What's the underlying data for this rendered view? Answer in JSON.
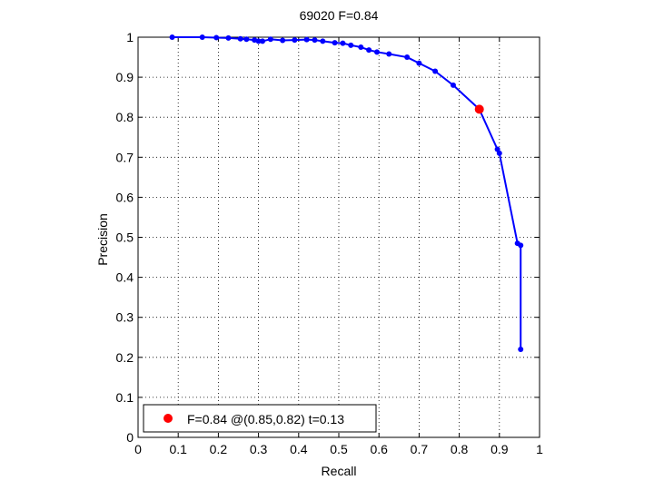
{
  "chart_data": {
    "type": "line",
    "title": "69020 F=0.84",
    "xlabel": "Recall",
    "ylabel": "Precision",
    "xlim": [
      0,
      1
    ],
    "ylim": [
      0,
      1
    ],
    "grid": true,
    "xticks": [
      0,
      0.1,
      0.2,
      0.3,
      0.4,
      0.5,
      0.6,
      0.7,
      0.8,
      0.9,
      1
    ],
    "yticks": [
      0,
      0.1,
      0.2,
      0.3,
      0.4,
      0.5,
      0.6,
      0.7,
      0.8,
      0.9,
      1
    ],
    "xtick_labels": [
      "0",
      "0.1",
      "0.2",
      "0.3",
      "0.4",
      "0.5",
      "0.6",
      "0.7",
      "0.8",
      "0.9",
      "1"
    ],
    "ytick_labels": [
      "0",
      "0.1",
      "0.2",
      "0.3",
      "0.4",
      "0.5",
      "0.6",
      "0.7",
      "0.8",
      "0.9",
      "1"
    ],
    "series": [
      {
        "color": "#0000ff",
        "marker": "dot",
        "x": [
          0.085,
          0.16,
          0.195,
          0.225,
          0.255,
          0.27,
          0.29,
          0.3,
          0.31,
          0.33,
          0.36,
          0.39,
          0.42,
          0.44,
          0.46,
          0.49,
          0.51,
          0.53,
          0.555,
          0.575,
          0.595,
          0.625,
          0.67,
          0.7,
          0.74,
          0.785,
          0.85,
          0.895,
          0.9,
          0.945,
          0.953,
          0.953
        ],
        "y": [
          1.0,
          1.0,
          0.999,
          0.998,
          0.996,
          0.995,
          0.993,
          0.99,
          0.99,
          0.995,
          0.992,
          0.993,
          0.994,
          0.993,
          0.99,
          0.986,
          0.985,
          0.98,
          0.975,
          0.968,
          0.963,
          0.958,
          0.95,
          0.935,
          0.915,
          0.88,
          0.82,
          0.72,
          0.71,
          0.485,
          0.48,
          0.22
        ]
      }
    ],
    "best_point": {
      "x": 0.85,
      "y": 0.82,
      "color": "#ff0000"
    },
    "legend": {
      "position": "bottom-left",
      "label": "F=0.84 @(0.85,0.82) t=0.13"
    }
  }
}
